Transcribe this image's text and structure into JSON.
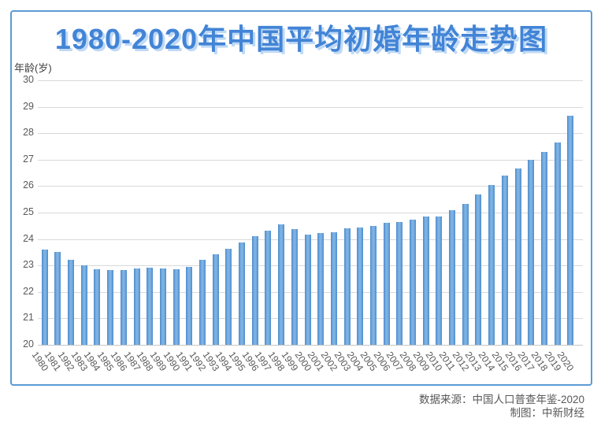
{
  "colors": {
    "accent_blue": "#5b9bd5",
    "bar_fill": "#5b9bd5",
    "title_blue": "#4284d6",
    "title_shadow": "#bfd9f5",
    "gridline": "#d9d9d9",
    "tick_text": "#595959",
    "footer_text": "#58585a"
  },
  "footer": {
    "source": "数据来源：中国人口普查年鉴-2020",
    "credit": "制图：中新财经"
  },
  "chart_data": {
    "type": "bar",
    "title": "1980-2020年中国平均初婚年龄走势图",
    "xlabel": "",
    "ylabel": "年龄(岁)",
    "ylim": [
      20,
      30
    ],
    "ytick_step": 1,
    "yticks": [
      20,
      21,
      22,
      23,
      24,
      25,
      26,
      27,
      28,
      29,
      30
    ],
    "grid": true,
    "legend": "none",
    "categories": [
      "1980",
      "1981",
      "1982",
      "1983",
      "1984",
      "1985",
      "1986",
      "1987",
      "1988",
      "1989",
      "1990",
      "1991",
      "1992",
      "1993",
      "1994",
      "1995",
      "1996",
      "1997",
      "1998",
      "1999",
      "2000",
      "2001",
      "2002",
      "2003",
      "2004",
      "2005",
      "2006",
      "2007",
      "2008",
      "2009",
      "2010",
      "2011",
      "2012",
      "2013",
      "2014",
      "2015",
      "2016",
      "2017",
      "2018",
      "2019",
      "2020"
    ],
    "values": [
      23.59,
      23.52,
      23.22,
      23.02,
      22.85,
      22.82,
      22.83,
      22.89,
      22.91,
      22.88,
      22.87,
      22.95,
      23.2,
      23.42,
      23.62,
      23.88,
      24.11,
      24.33,
      24.55,
      24.38,
      24.16,
      24.22,
      24.26,
      24.4,
      24.43,
      24.48,
      24.62,
      24.63,
      24.74,
      24.85,
      24.86,
      25.08,
      25.33,
      25.69,
      26.04,
      26.4,
      26.67,
      26.98,
      27.28,
      27.66,
      28.67
    ]
  }
}
